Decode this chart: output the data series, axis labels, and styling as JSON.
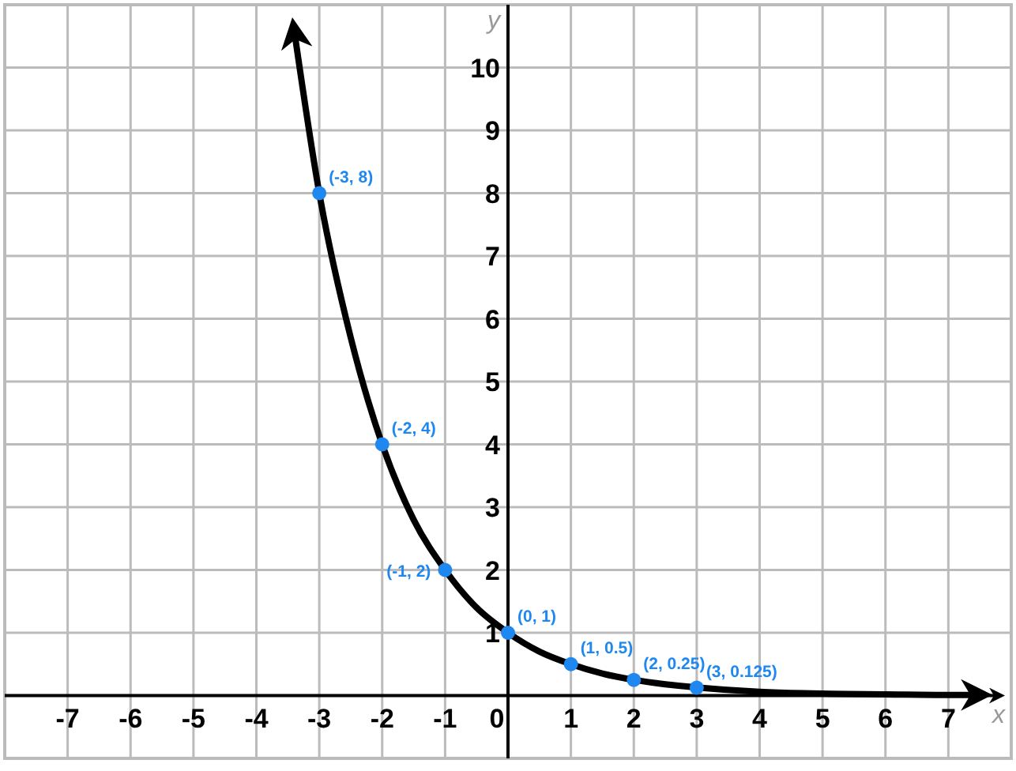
{
  "chart_data": {
    "type": "line",
    "xlabel": "x",
    "ylabel": "y",
    "xlim": [
      -8,
      8
    ],
    "ylim": [
      -1,
      11
    ],
    "xticks": [
      -7,
      -6,
      -5,
      -4,
      -3,
      -2,
      -1,
      0,
      1,
      2,
      3,
      4,
      5,
      6,
      7
    ],
    "yticks": [
      1,
      2,
      3,
      4,
      5,
      6,
      7,
      8,
      9,
      10
    ],
    "grid": true,
    "line_style": "solid",
    "series": [
      {
        "color": "#000000",
        "marker": "none",
        "x": [
          -3.4,
          -3,
          -2.5,
          -2,
          -1.5,
          -1,
          -0.5,
          0,
          0.5,
          1,
          1.5,
          2,
          2.5,
          3,
          4,
          5,
          6,
          7,
          7.5
        ],
        "values": [
          10.6,
          8,
          5.7,
          4,
          2.8,
          2,
          1.4,
          1,
          0.7,
          0.5,
          0.35,
          0.25,
          0.18,
          0.13,
          0.06,
          0.03,
          0.02,
          0.01,
          0.01
        ]
      },
      {
        "type": "scatter",
        "color": "#1e88f0",
        "marker": "circle",
        "x": [
          -3,
          -2,
          -1,
          0,
          1,
          2,
          3
        ],
        "values": [
          8,
          4,
          2,
          1,
          0.5,
          0.25,
          0.125
        ],
        "value_labels": [
          "(-3, 8)",
          "(-2, 4)",
          "(-1, 2)",
          "(0, 1)",
          "(1, 0.5)",
          "(2, 0.25)",
          "(3, 0.125)"
        ]
      }
    ]
  }
}
